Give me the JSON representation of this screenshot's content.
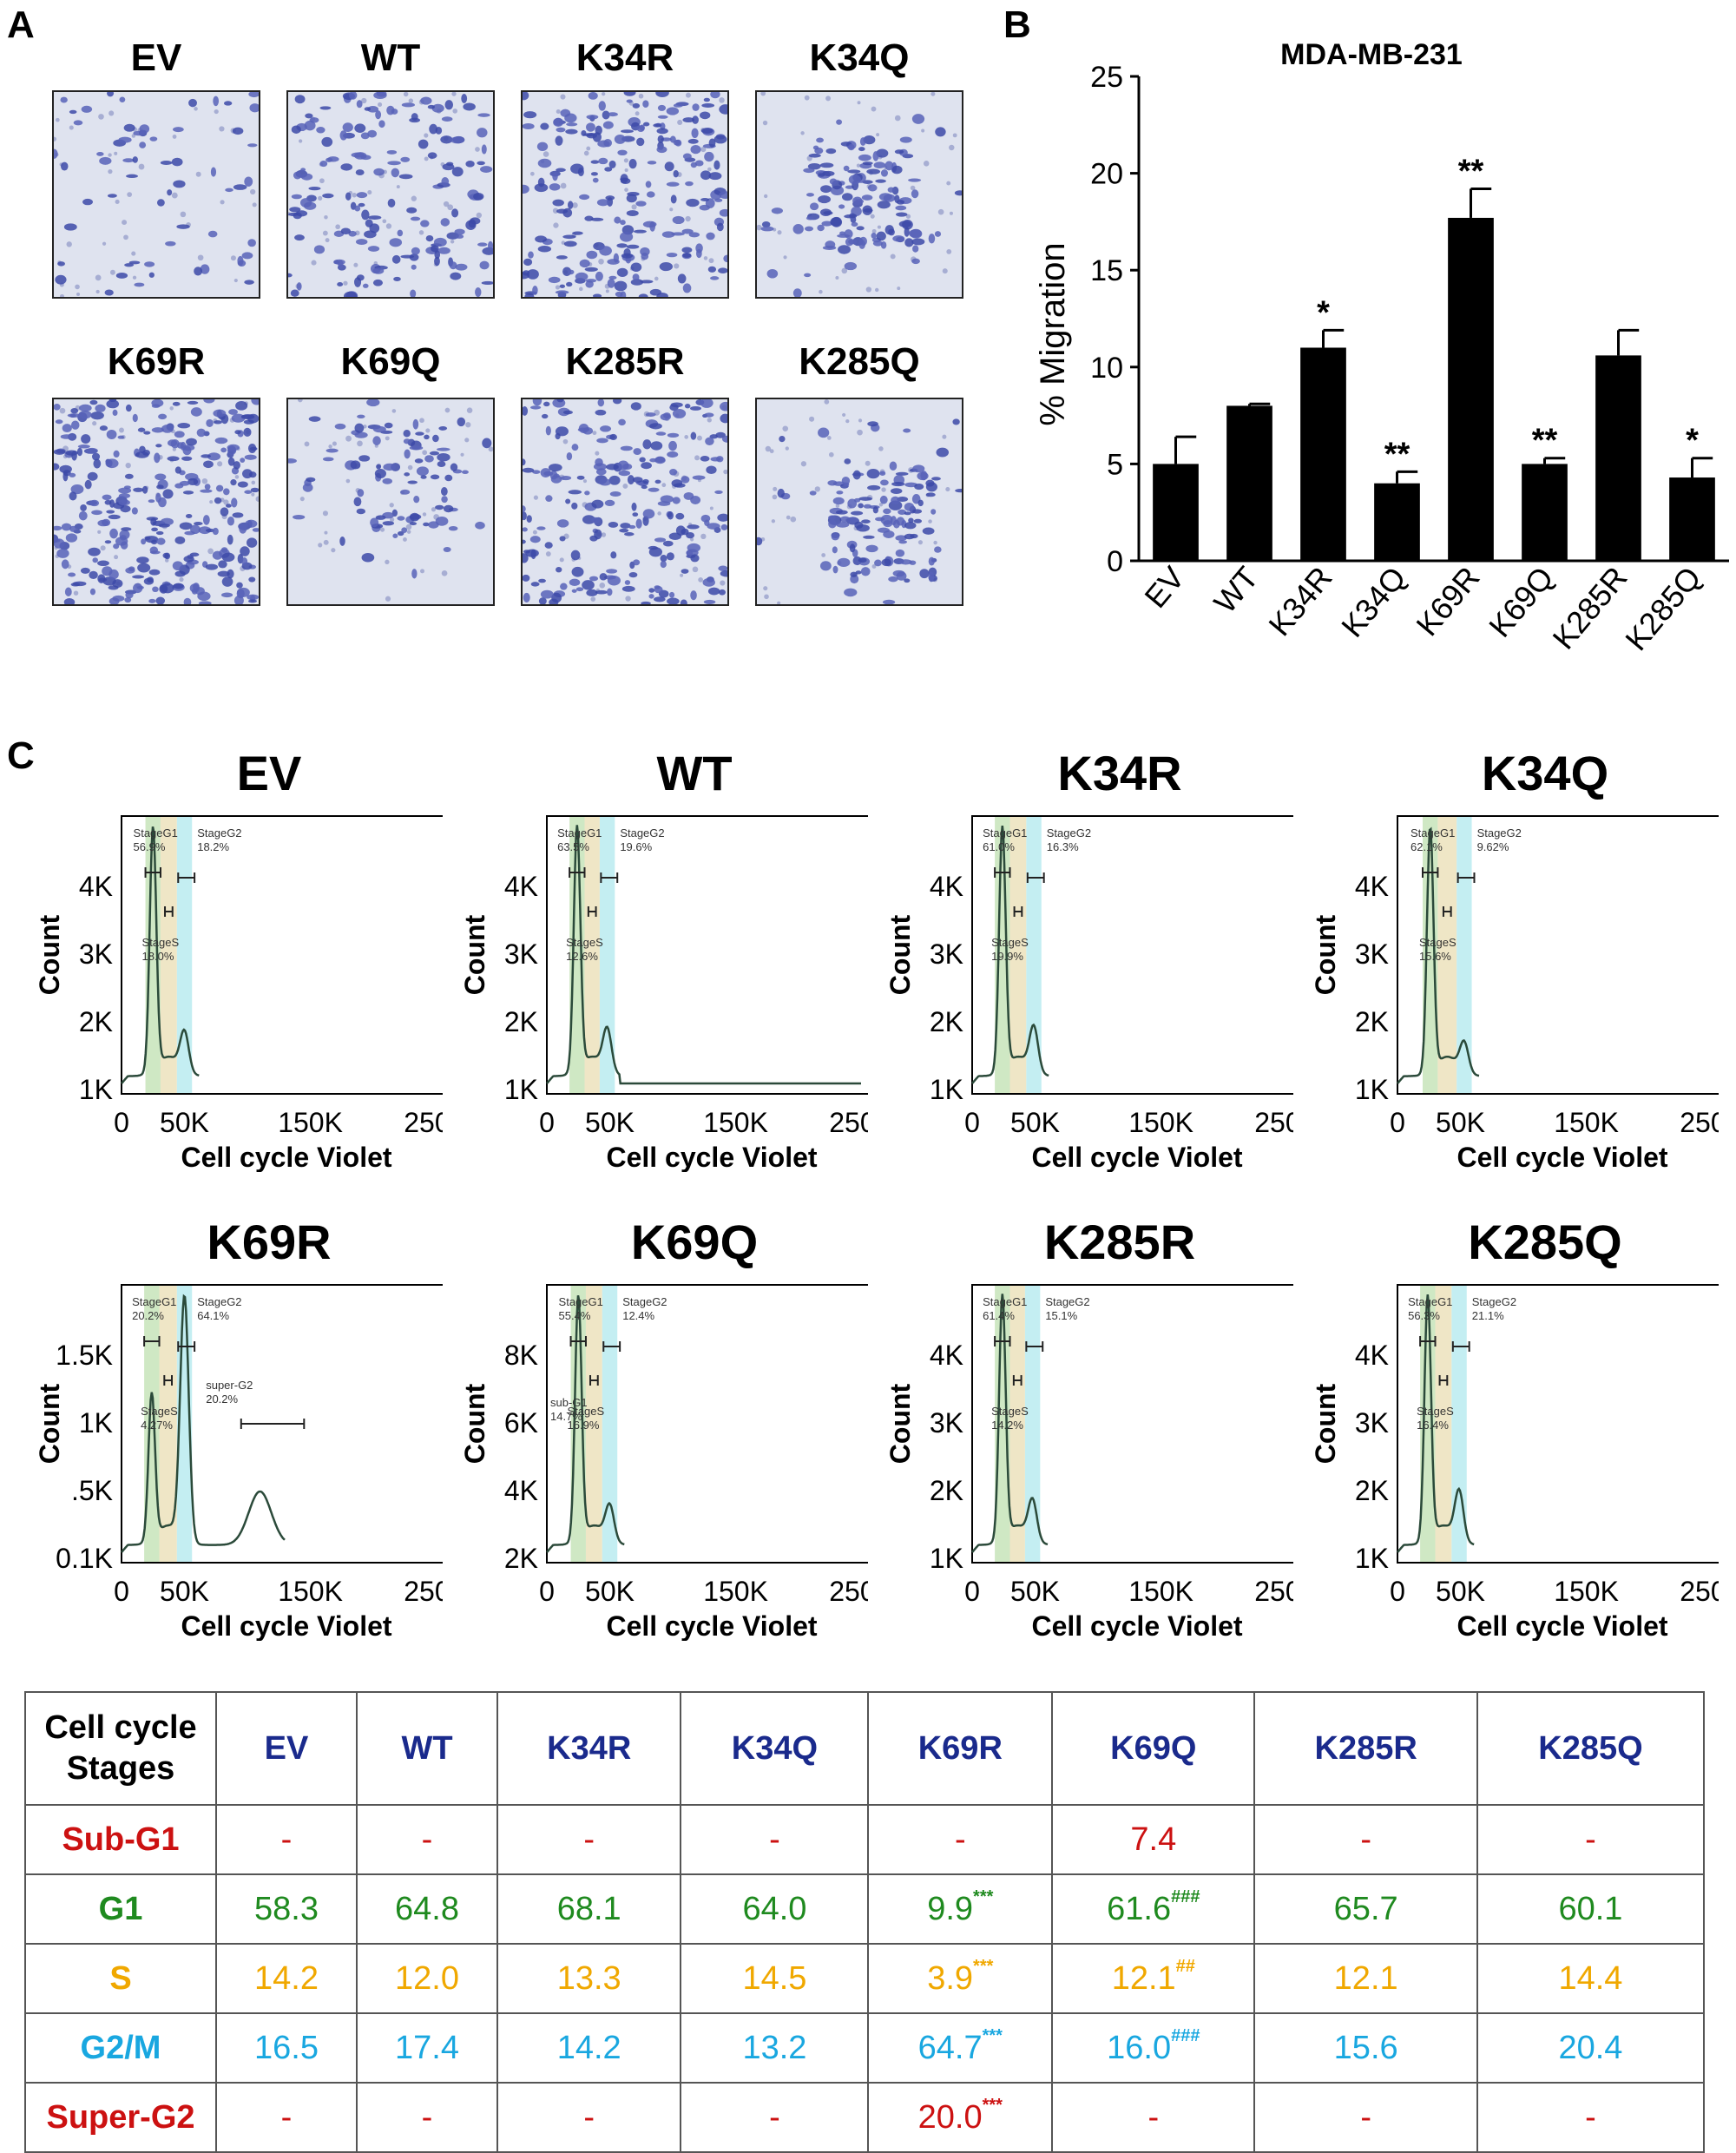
{
  "panels": {
    "a": "A",
    "b": "B",
    "c": "C"
  },
  "micrographs": [
    {
      "label": "EV",
      "density": "sparse"
    },
    {
      "label": "WT",
      "density": "medium"
    },
    {
      "label": "K34R",
      "density": "dense"
    },
    {
      "label": "K34Q",
      "density": "clustered"
    },
    {
      "label": "K69R",
      "density": "very-dense"
    },
    {
      "label": "K69Q",
      "density": "sparse-cluster"
    },
    {
      "label": "K285R",
      "density": "dense"
    },
    {
      "label": "K285Q",
      "density": "clustered"
    }
  ],
  "chart_data": [
    {
      "type": "bar",
      "title": "MDA-MB-231",
      "xlabel": "",
      "ylabel": "% Migration",
      "categories": [
        "EV",
        "WT",
        "K34R",
        "K34Q",
        "K69R",
        "K69Q",
        "K285R",
        "K285Q"
      ],
      "values": [
        5.0,
        8.0,
        11.0,
        4.0,
        17.7,
        5.0,
        10.6,
        4.3
      ],
      "errors": [
        1.4,
        0.1,
        0.9,
        0.6,
        1.5,
        0.3,
        1.3,
        1.0
      ],
      "significance": [
        "",
        "",
        "*",
        "**",
        "**",
        "**",
        "",
        "*"
      ],
      "ylim": [
        0,
        25
      ],
      "yticks": [
        "0",
        "5",
        "10",
        "15",
        "20",
        "25"
      ],
      "bar_color": "#000000",
      "grid": false
    },
    {
      "type": "line",
      "subtype": "flow-cytometry-histograms",
      "xlabel": "Cell cycle Violet",
      "ylabel": "Count",
      "xticks": [
        "0",
        "50K",
        "150K",
        "250K"
      ],
      "xtick_values": [
        0,
        50000,
        150000,
        250000
      ],
      "colors": {
        "g1_band": "#cfe8c4",
        "s_band": "#efe6c6",
        "g2_band": "#c4eef2",
        "curve": "#2b4a3a"
      },
      "histograms": [
        {
          "title": "EV",
          "yticks": [
            "4K",
            "3K",
            "2K",
            "1K"
          ],
          "gates": [
            {
              "name": "StageG1",
              "value": "56.9%"
            },
            {
              "name": "StageG2",
              "value": "18.2%"
            },
            {
              "name": "StageS",
              "value": "18.0%"
            }
          ],
          "g1_peak": 25000,
          "g2_peak": 50000,
          "g1_height": 1.0,
          "g2_height": 0.16,
          "flat_tail": false,
          "second_g2": false
        },
        {
          "title": "WT",
          "yticks": [
            "4K",
            "3K",
            "2K",
            "1K"
          ],
          "gates": [
            {
              "name": "StageG1",
              "value": "63.5%"
            },
            {
              "name": "StageG2",
              "value": "19.6%"
            },
            {
              "name": "StageS",
              "value": "12.6%"
            }
          ],
          "g1_peak": 24000,
          "g2_peak": 48000,
          "g1_height": 1.0,
          "g2_height": 0.17,
          "flat_tail": true,
          "second_g2": false
        },
        {
          "title": "K34R",
          "yticks": [
            "4K",
            "3K",
            "2K",
            "1K"
          ],
          "gates": [
            {
              "name": "StageG1",
              "value": "61.0%"
            },
            {
              "name": "StageG2",
              "value": "16.3%"
            },
            {
              "name": "StageS",
              "value": "19.9%"
            }
          ],
          "g1_peak": 24000,
          "g2_peak": 49000,
          "g1_height": 1.0,
          "g2_height": 0.18,
          "flat_tail": false,
          "second_g2": false
        },
        {
          "title": "K34Q",
          "yticks": [
            "4K",
            "3K",
            "2K",
            "1K"
          ],
          "gates": [
            {
              "name": "StageG1",
              "value": "62.1%"
            },
            {
              "name": "StageG2",
              "value": "9.62%"
            },
            {
              "name": "StageS",
              "value": "15.6%"
            }
          ],
          "g1_peak": 26000,
          "g2_peak": 53000,
          "g1_height": 1.0,
          "g2_height": 0.12,
          "flat_tail": false,
          "second_g2": false
        },
        {
          "title": "K69R",
          "yticks": [
            "1.5K",
            "1K",
            ".5K",
            "0.1K"
          ],
          "gates": [
            {
              "name": "StageG1",
              "value": "20.2%"
            },
            {
              "name": "StageG2",
              "value": "64.1%"
            },
            {
              "name": "StageS",
              "value": "4.27%"
            },
            {
              "name": "super-G2",
              "value": "20.2%"
            }
          ],
          "g1_peak": 24000,
          "g2_peak": 50000,
          "g1_height": 0.6,
          "g2_height": 1.0,
          "flat_tail": false,
          "second_g2": true
        },
        {
          "title": "K69Q",
          "yticks": [
            "8K",
            "6K",
            "4K",
            "2K"
          ],
          "gates": [
            {
              "name": "StageG1",
              "value": "55.4%"
            },
            {
              "name": "StageG2",
              "value": "12.4%"
            },
            {
              "name": "sub-G1",
              "value": "14.7%"
            },
            {
              "name": "StageS",
              "value": "16.9%"
            }
          ],
          "g1_peak": 25000,
          "g2_peak": 50000,
          "g1_height": 1.0,
          "g2_height": 0.14,
          "flat_tail": false,
          "second_g2": false
        },
        {
          "title": "K285R",
          "yticks": [
            "4K",
            "3K",
            "2K",
            "1K"
          ],
          "gates": [
            {
              "name": "StageG1",
              "value": "61.4%"
            },
            {
              "name": "StageG2",
              "value": "15.1%"
            },
            {
              "name": "StageS",
              "value": "14.2%"
            }
          ],
          "g1_peak": 24000,
          "g2_peak": 48000,
          "g1_height": 1.0,
          "g2_height": 0.16,
          "flat_tail": false,
          "second_g2": false
        },
        {
          "title": "K285Q",
          "yticks": [
            "4K",
            "3K",
            "2K",
            "1K"
          ],
          "gates": [
            {
              "name": "StageG1",
              "value": "56.3%"
            },
            {
              "name": "StageG2",
              "value": "21.1%"
            },
            {
              "name": "StageS",
              "value": "16.4%"
            }
          ],
          "g1_peak": 24000,
          "g2_peak": 49000,
          "g1_height": 1.0,
          "g2_height": 0.2,
          "flat_tail": false,
          "second_g2": false
        }
      ]
    },
    {
      "type": "table",
      "header": [
        "Cell cycle\nStages",
        "EV",
        "WT",
        "K34R",
        "K34Q",
        "K69R",
        "K69Q",
        "K285R",
        "K285Q"
      ],
      "rows": [
        {
          "stage": "Sub-G1",
          "color": "#cc1111",
          "cells": [
            {
              "v": "-"
            },
            {
              "v": "-"
            },
            {
              "v": "-"
            },
            {
              "v": "-"
            },
            {
              "v": "-"
            },
            {
              "v": "7.4"
            },
            {
              "v": "-"
            },
            {
              "v": "-"
            }
          ]
        },
        {
          "stage": "G1",
          "color": "#1f8a1f",
          "cells": [
            {
              "v": "58.3"
            },
            {
              "v": "64.8"
            },
            {
              "v": "68.1"
            },
            {
              "v": "64.0"
            },
            {
              "v": "9.9",
              "sig": "***"
            },
            {
              "v": "61.6",
              "sig": "###"
            },
            {
              "v": "65.7"
            },
            {
              "v": "60.1"
            }
          ]
        },
        {
          "stage": "S",
          "color": "#f0a800",
          "cells": [
            {
              "v": "14.2"
            },
            {
              "v": "12.0"
            },
            {
              "v": "13.3"
            },
            {
              "v": "14.5"
            },
            {
              "v": "3.9",
              "sig": "***"
            },
            {
              "v": "12.1",
              "sig": "##"
            },
            {
              "v": "12.1"
            },
            {
              "v": "14.4"
            }
          ]
        },
        {
          "stage": "G2/M",
          "color": "#19a7e0",
          "cells": [
            {
              "v": "16.5"
            },
            {
              "v": "17.4"
            },
            {
              "v": "14.2"
            },
            {
              "v": "13.2"
            },
            {
              "v": "64.7",
              "sig": "***"
            },
            {
              "v": "16.0",
              "sig": "###"
            },
            {
              "v": "15.6"
            },
            {
              "v": "20.4"
            }
          ]
        },
        {
          "stage": "Super-G2",
          "color": "#cc1111",
          "cells": [
            {
              "v": "-"
            },
            {
              "v": "-"
            },
            {
              "v": "-"
            },
            {
              "v": "-"
            },
            {
              "v": "20.0",
              "sig": "***"
            },
            {
              "v": "-"
            },
            {
              "v": "-"
            },
            {
              "v": "-"
            }
          ]
        }
      ]
    }
  ]
}
